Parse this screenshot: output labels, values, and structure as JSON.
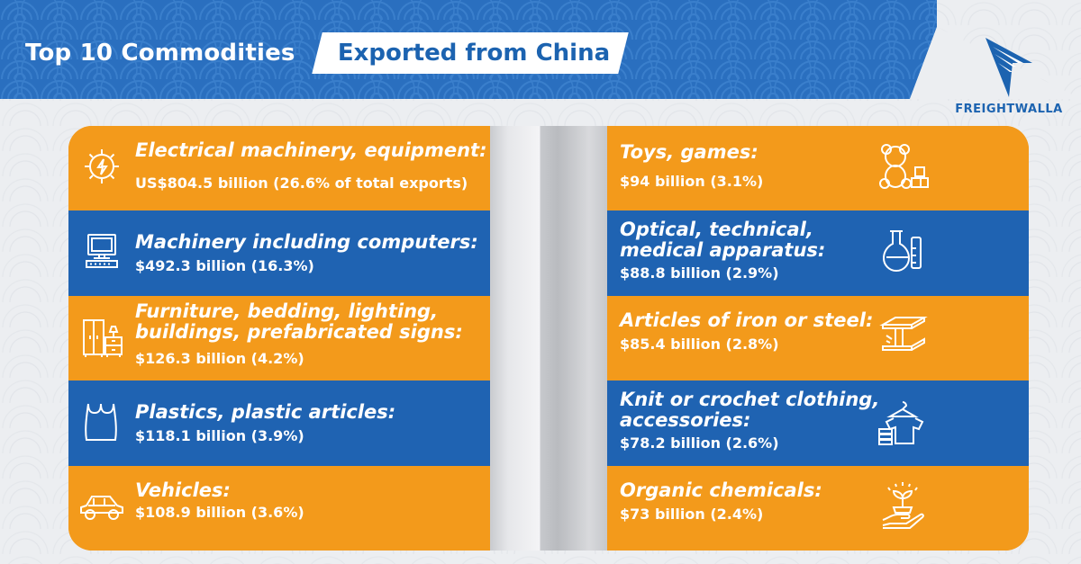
{
  "header": {
    "title_part1": "Top 10 Commodities",
    "title_part2": "Exported from China",
    "brand_color": "#1c63b0",
    "accent_color": "#f39a1b"
  },
  "logo": {
    "name": "FREIGHTWALLA",
    "icon": "freightwalla-logo-icon"
  },
  "left_items": [
    {
      "title": "Electrical machinery, equipment:",
      "value": "US$804.5 billion (26.6% of total exports)",
      "icon": "gear-lightning-icon",
      "color": "orange"
    },
    {
      "title": "Machinery including computers:",
      "value": "$492.3 billion (16.3%)",
      "icon": "computer-icon",
      "color": "blue"
    },
    {
      "title": "Furniture, bedding, lighting,\nbuildings, prefabricated signs:",
      "value": "$126.3 billion (4.2%)",
      "icon": "furniture-icon",
      "color": "orange"
    },
    {
      "title": "Plastics, plastic articles:",
      "value": "$118.1 billion (3.9%)",
      "icon": "plastic-bag-icon",
      "color": "blue"
    },
    {
      "title": "Vehicles:",
      "value": "$108.9 billion (3.6%)",
      "icon": "car-icon",
      "color": "orange"
    }
  ],
  "right_items": [
    {
      "title": "Toys, games:",
      "value": "$94 billion (3.1%)",
      "icon": "teddy-bear-icon",
      "color": "orange"
    },
    {
      "title": "Optical, technical,\nmedical apparatus:",
      "value": "$88.8 billion (2.9%)",
      "icon": "lab-flask-icon",
      "color": "blue"
    },
    {
      "title": "Articles of iron or steel:",
      "value": "$85.4 billion (2.8%)",
      "icon": "steel-beam-icon",
      "color": "orange"
    },
    {
      "title": "Knit or crochet clothing,\naccessories:",
      "value": "$78.2 billion (2.6%)",
      "icon": "clothing-icon",
      "color": "blue"
    },
    {
      "title": "Organic chemicals:",
      "value": "$73 billion (2.4%)",
      "icon": "plant-hand-icon",
      "color": "orange"
    }
  ]
}
